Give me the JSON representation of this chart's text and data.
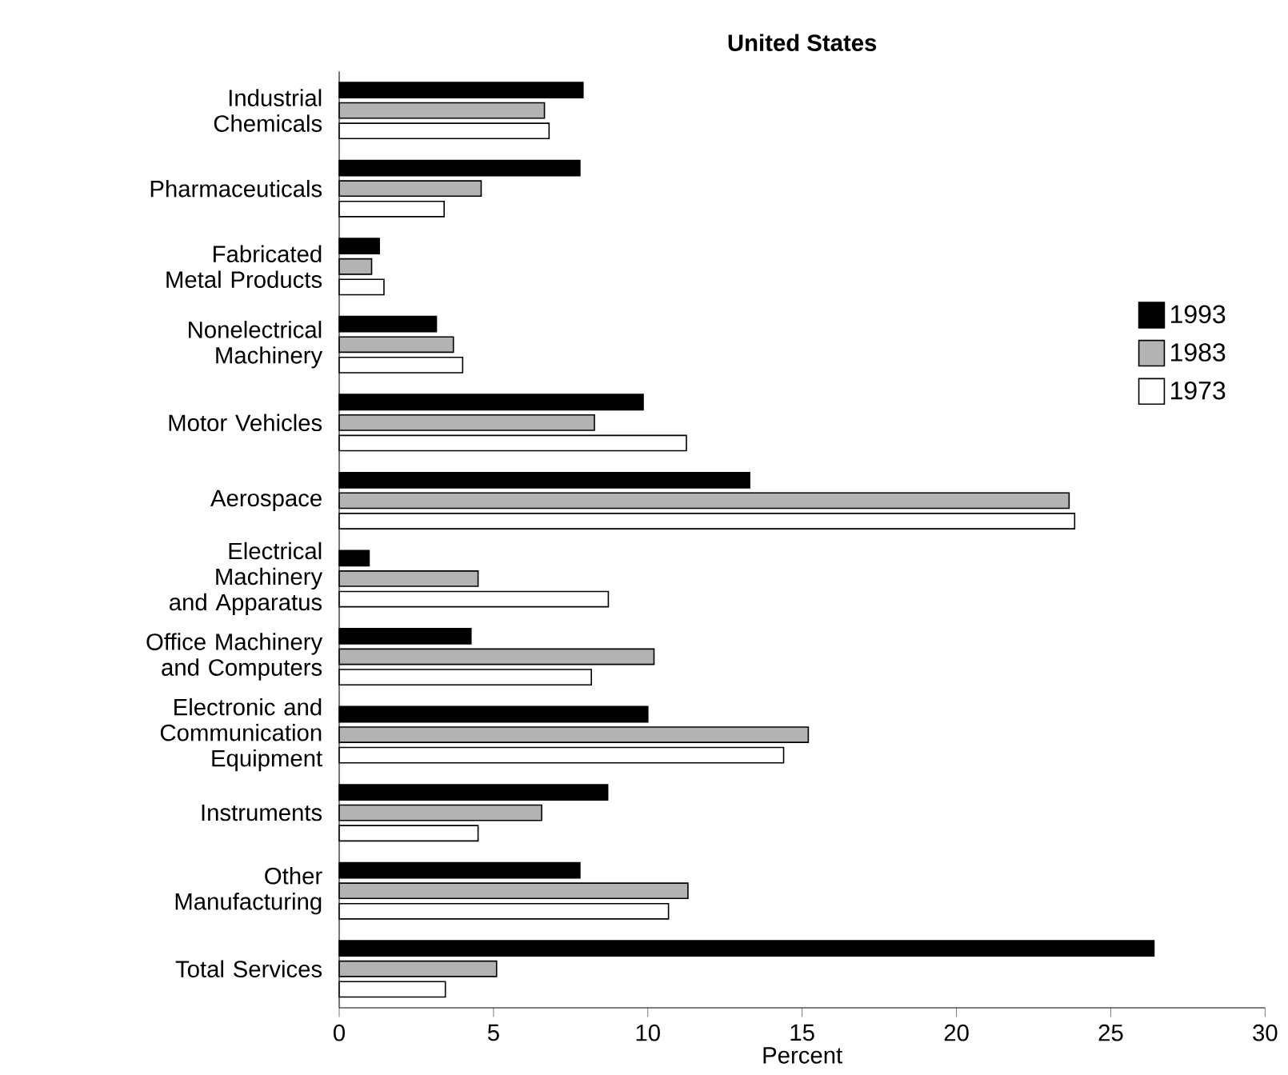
{
  "chart_data": {
    "type": "bar",
    "orientation": "horizontal",
    "title": "United States",
    "xlabel": "Percent",
    "categories": [
      "Industrial Chemicals",
      "Pharmaceuticals",
      "Fabricated Metal Products",
      "Nonelectrical Machinery",
      "Motor Vehicles",
      "Aerospace",
      "Electrical Machinery and Apparatus",
      "Office Machinery and Computers",
      "Electronic and Communication Equipment",
      "Instruments",
      "Other Manufacturing",
      "Total Services"
    ],
    "series": [
      {
        "name": "1993",
        "color": "#000000",
        "values": [
          7.9,
          7.8,
          1.3,
          3.15,
          9.85,
          13.3,
          0.97,
          4.27,
          10.0,
          8.7,
          7.8,
          26.4
        ]
      },
      {
        "name": "1983",
        "color": "#b3b3b3",
        "values": [
          6.65,
          4.6,
          1.05,
          3.7,
          8.27,
          23.65,
          4.5,
          10.2,
          15.2,
          6.56,
          11.3,
          5.1
        ]
      },
      {
        "name": "1973",
        "color": "#ffffff",
        "values": [
          6.8,
          3.4,
          1.45,
          4.0,
          11.25,
          23.83,
          8.72,
          8.17,
          14.4,
          4.5,
          10.67,
          3.44
        ]
      }
    ],
    "xlim": [
      0,
      30
    ],
    "xticks": [
      0,
      5,
      10,
      15,
      20,
      25,
      30
    ],
    "legend": "top right"
  }
}
